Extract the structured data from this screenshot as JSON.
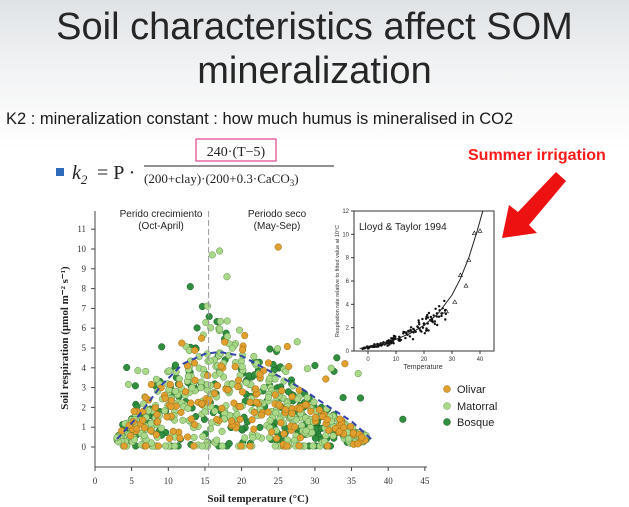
{
  "slide": {
    "title_line1": "Soil characteristics affect SOM",
    "title_line2": "mineralization",
    "subtitle": "K2 : mineralization constant : how much humus is mineralised in CO2",
    "formula": {
      "lhs": "k",
      "lhs_sub": "2",
      "rhs_prefix": "= P ·",
      "numerator": "240·(T−5)",
      "denominator": "(200+clay)·(200+0.3·CaCO",
      "denominator_sub": "3",
      "denominator_end": ")"
    },
    "annotation": "Summer irrigation",
    "colors": {
      "olivar": "#e0a030",
      "matorral": "#a8d888",
      "bosque": "#2f8f3f",
      "highlight_box": "#e0448c",
      "arrow": "#ee1111",
      "fit_curve": "#3344aa"
    }
  },
  "chart_data": [
    {
      "type": "scatter",
      "xlabel": "Soil temperature (°C)",
      "ylabel": "Soil respiration (μmol m⁻² s⁻¹)",
      "x_ticks": [
        "0",
        "5",
        "10",
        "15",
        "20",
        "25",
        "30",
        "35",
        "40",
        "45"
      ],
      "y_ticks": [
        "0",
        "1",
        "2",
        "3",
        "4",
        "5",
        "6",
        "7",
        "8",
        "9",
        "10",
        "11"
      ],
      "xlim": [
        0,
        45
      ],
      "ylim": [
        0,
        11
      ],
      "period_labels": [
        {
          "line1": "Perido crecimiento",
          "line2": "(Oct-April)"
        },
        {
          "line1": "Periodo seco",
          "line2": "(May-Sep)"
        }
      ],
      "divider_x": 15.5,
      "legend": [
        "Olivar",
        "Matorral",
        "Bosque"
      ],
      "series": [
        {
          "name": "Olivar",
          "approx_range_x": [
            4,
            36
          ],
          "peak_y": 10.1
        },
        {
          "name": "Matorral",
          "approx_range_x": [
            3,
            37
          ],
          "peak_y": 9.9
        },
        {
          "name": "Bosque",
          "approx_range_x": [
            3,
            42
          ],
          "peak_y": 9.1
        }
      ],
      "fit_curve": {
        "type": "dashed",
        "points": [
          [
            3,
            0.4
          ],
          [
            6,
            1.6
          ],
          [
            9,
            3.1
          ],
          [
            12,
            4.2
          ],
          [
            15,
            4.7
          ],
          [
            17,
            4.8
          ],
          [
            20,
            4.6
          ],
          [
            24,
            3.8
          ],
          [
            28,
            3.0
          ],
          [
            32,
            2.0
          ],
          [
            35,
            1.3
          ],
          [
            38,
            0.3
          ]
        ]
      }
    },
    {
      "type": "scatter",
      "title": "Lloyd & Taylor 1994",
      "xlabel": "Temperature",
      "ylabel": "Respiration rate relative to fitted value at 10°C",
      "x_ticks": [
        "0",
        "10",
        "20",
        "30",
        "40"
      ],
      "y_ticks": [
        "0",
        "2",
        "4",
        "6",
        "8",
        "10",
        "12"
      ],
      "xlim": [
        -5,
        45
      ],
      "ylim": [
        0,
        12
      ],
      "fit_curve": {
        "points": [
          [
            -3,
            0.2
          ],
          [
            0,
            0.4
          ],
          [
            5,
            0.65
          ],
          [
            10,
            1.0
          ],
          [
            15,
            1.5
          ],
          [
            20,
            2.2
          ],
          [
            25,
            3.2
          ],
          [
            30,
            4.8
          ],
          [
            33,
            6.2
          ],
          [
            36,
            8.0
          ],
          [
            39,
            10.3
          ],
          [
            41,
            12
          ]
        ]
      }
    }
  ]
}
